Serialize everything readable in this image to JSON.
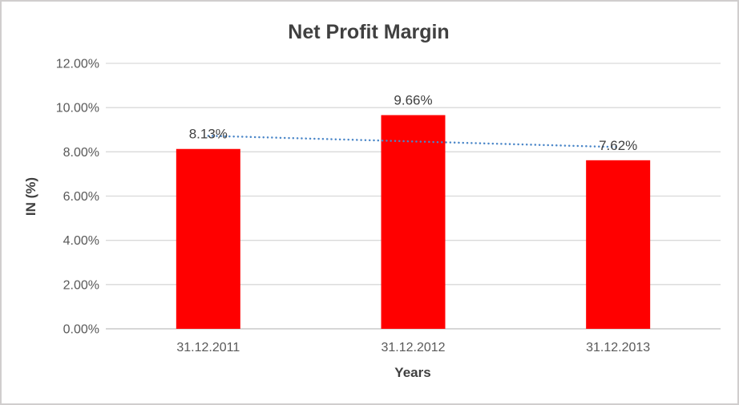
{
  "chart_data": {
    "type": "bar",
    "title": "Net Profit Margin",
    "categories": [
      "31.12.2011",
      "31.12.2012",
      "31.12.2013"
    ],
    "values": [
      8.13,
      9.66,
      7.62
    ],
    "value_labels": [
      "8.13%",
      "9.66%",
      "7.62%"
    ],
    "xlabel": "Years",
    "ylabel": "IN (%)",
    "ylim": [
      0,
      12
    ],
    "ytick_step": 2,
    "ytick_labels": [
      "0.00%",
      "2.00%",
      "4.00%",
      "6.00%",
      "8.00%",
      "10.00%",
      "12.00%"
    ],
    "grid": true,
    "legend": false,
    "bar_color": "#FF0000",
    "trendline": {
      "type": "linear",
      "style": "dotted",
      "color": "#4A86C8"
    },
    "colors": {
      "title": "#404040",
      "axis_title": "#404040",
      "tick_label": "#595959",
      "data_label": "#404040",
      "gridline": "#D9D9D9",
      "axis_line": "#BFBFBF",
      "background": "#FFFFFF",
      "frame_border": "#D0CECE"
    }
  }
}
